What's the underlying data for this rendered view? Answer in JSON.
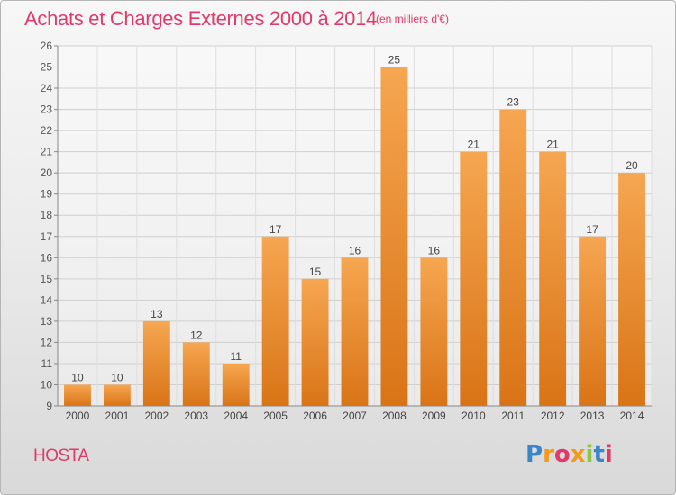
{
  "header": {
    "title": "Achats et Charges Externes 2000 à 2014",
    "unit_note": "(en milliers d'€)"
  },
  "commune": "HOSTA",
  "logo": {
    "letters": [
      "P",
      "r",
      "o",
      "x",
      "i",
      "t",
      "i"
    ]
  },
  "colors": {
    "bar_light": "#f6a651",
    "bar_dark": "#d97416",
    "text_accent": "#e03a6a"
  },
  "chart_data": {
    "type": "bar",
    "title": "Achats et Charges Externes 2000 à 2014",
    "subtitle": "(en milliers d'€)",
    "xlabel": "",
    "ylabel": "",
    "categories": [
      "2000",
      "2001",
      "2002",
      "2003",
      "2004",
      "2005",
      "2006",
      "2007",
      "2008",
      "2009",
      "2010",
      "2011",
      "2012",
      "2013",
      "2014"
    ],
    "values": [
      10,
      10,
      13,
      12,
      11,
      17,
      15,
      16,
      25,
      16,
      21,
      23,
      21,
      17,
      20
    ],
    "ylim": [
      9,
      26
    ],
    "yticks": [
      9,
      10,
      11,
      12,
      13,
      14,
      15,
      16,
      17,
      18,
      19,
      20,
      21,
      22,
      23,
      24,
      25,
      26
    ],
    "grid": true,
    "data_labels": true
  }
}
